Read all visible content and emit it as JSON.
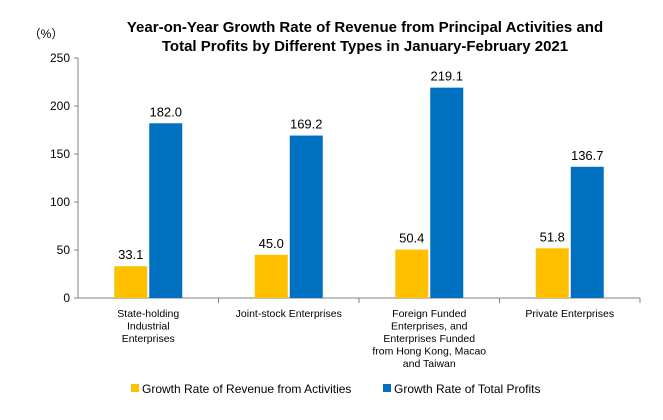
{
  "chart_data": {
    "type": "bar",
    "title_lines": [
      "Year-on-Year Growth Rate of Revenue from Principal Activities  and",
      "Total Profits  by Different Types in January-February 2021"
    ],
    "unit_label": "（%）",
    "ylim": [
      0,
      250
    ],
    "yticks": [
      0,
      50,
      100,
      150,
      200,
      250
    ],
    "grid": false,
    "legend_position": "bottom",
    "categories": [
      [
        "State-holding",
        "Industrial",
        "Enterprises"
      ],
      [
        "Joint-stock Enterprises"
      ],
      [
        "Foreign Funded",
        "Enterprises, and",
        "Enterprises Funded",
        "from Hong Kong, Macao",
        "and Taiwan"
      ],
      [
        "Private Enterprises"
      ]
    ],
    "series": [
      {
        "name": "Growth Rate of Revenue from Activities",
        "color": "#FFC000",
        "values": [
          33.1,
          45.0,
          50.4,
          51.8
        ],
        "labels": [
          "33.1",
          "45.0",
          "50.4",
          "51.8"
        ]
      },
      {
        "name": "Growth Rate of Total Profits",
        "color": "#0070C0",
        "values": [
          182.0,
          169.2,
          219.1,
          136.7
        ],
        "labels": [
          "182.0",
          "169.2",
          "219.1",
          "136.7"
        ]
      }
    ]
  }
}
